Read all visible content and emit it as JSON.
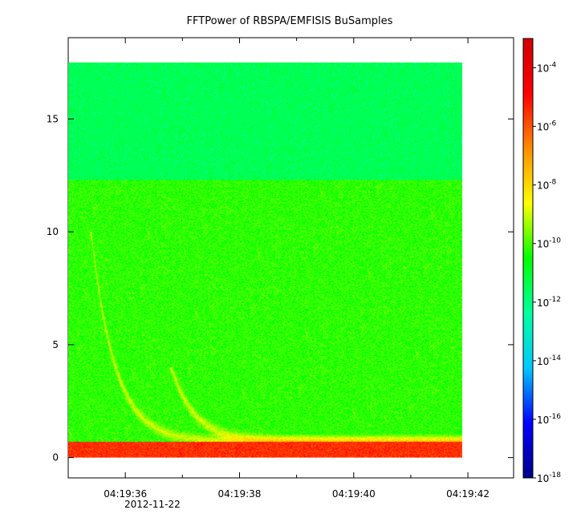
{
  "chart_data": {
    "type": "heatmap",
    "title": "FFTPower of RBSPA/EMFISIS  BuSamples",
    "xlabel": "",
    "ylabel": "",
    "x_tick_labels": [
      "04:19:36",
      "04:19:38",
      "04:19:40",
      "04:19:42"
    ],
    "x_date_label": "2012-11-22",
    "x_range": [
      "04:19:35.0",
      "04:19:42.8"
    ],
    "data_x_range": [
      "04:19:35.0",
      "04:19:41.9"
    ],
    "y_ticks": [
      0,
      5,
      10,
      15
    ],
    "y_tick_labels": [
      "0",
      "5",
      "10",
      "15"
    ],
    "ylim": [
      -0.9,
      18.6
    ],
    "data_y_range": [
      0,
      17.5
    ],
    "colorbar": {
      "scale": "log",
      "range": [
        1e-18,
        0.001
      ],
      "tick_base": "10",
      "tick_exponents": [
        "-4",
        "-6",
        "-8",
        "-10",
        "-12",
        "-14",
        "-16",
        "-18"
      ],
      "colormap": [
        "#00008b",
        "#0000ff",
        "#00c8ff",
        "#00ffa0",
        "#00ff00",
        "#ffff00",
        "#ff8c00",
        "#ff0000",
        "#d00000"
      ]
    },
    "bands": [
      {
        "y_range": [
          12.3,
          17.5
        ],
        "log10_power": -11.5
      },
      {
        "y_range": [
          0.7,
          12.3
        ],
        "log10_power": -10.2
      },
      {
        "y_range": [
          0.0,
          0.7
        ],
        "log10_power": -5.5
      }
    ],
    "whistler_traces": [
      {
        "start_time": "04:19:35.4",
        "start_y": 10,
        "end_y": 0.7
      },
      {
        "start_time": "04:19:36.8",
        "start_y": 4,
        "end_y": 0.7
      }
    ],
    "grid": false,
    "legend": "colorbar-right"
  }
}
